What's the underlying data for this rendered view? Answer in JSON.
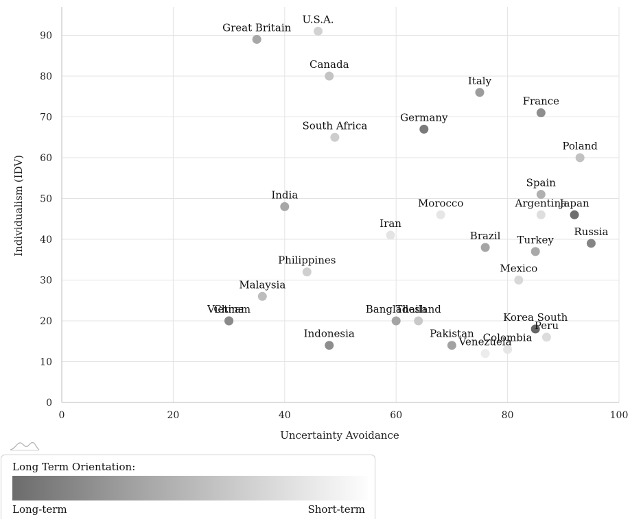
{
  "chart_data": {
    "type": "scatter",
    "xlabel": "Uncertainty Avoidance",
    "ylabel": "Individualism (IDV)",
    "xlim": [
      0,
      100
    ],
    "ylim": [
      0,
      95
    ],
    "x_ticks": [
      "0",
      "20",
      "40",
      "60",
      "80",
      "100"
    ],
    "y_ticks": [
      "0",
      "10",
      "20",
      "30",
      "40",
      "50",
      "60",
      "70",
      "80",
      "90"
    ],
    "grid": true,
    "color_encoding": "Long Term Orientation (darker = long-term, lighter = short-term)",
    "points": [
      {
        "label": "U.S.A.",
        "x": 46,
        "y": 91,
        "color": "#d2d2d2"
      },
      {
        "label": "Great Britain",
        "x": 35,
        "y": 89,
        "color": "#a7a7a7"
      },
      {
        "label": "Canada",
        "x": 48,
        "y": 80,
        "color": "#c4c4c4"
      },
      {
        "label": "Italy",
        "x": 75,
        "y": 76,
        "color": "#9c9c9c"
      },
      {
        "label": "France",
        "x": 86,
        "y": 71,
        "color": "#8e8e8e"
      },
      {
        "label": "Germany",
        "x": 65,
        "y": 67,
        "color": "#7a7a7a"
      },
      {
        "label": "South Africa",
        "x": 49,
        "y": 65,
        "color": "#cdcdcd"
      },
      {
        "label": "Poland",
        "x": 93,
        "y": 60,
        "color": "#c2c2c2"
      },
      {
        "label": "Spain",
        "x": 86,
        "y": 51,
        "color": "#b0b0b0"
      },
      {
        "label": "India",
        "x": 40,
        "y": 48,
        "color": "#a7a7a7"
      },
      {
        "label": "Morocco",
        "x": 68,
        "y": 46,
        "color": "#e6e6e6"
      },
      {
        "label": "Argentina",
        "x": 86,
        "y": 46,
        "color": "#dedede"
      },
      {
        "label": "Japan",
        "x": 92,
        "y": 46,
        "color": "#6e6e6e"
      },
      {
        "label": "Iran",
        "x": 59,
        "y": 41,
        "color": "#e4e4e4"
      },
      {
        "label": "Russia",
        "x": 95,
        "y": 39,
        "color": "#858585"
      },
      {
        "label": "Brazil",
        "x": 76,
        "y": 38,
        "color": "#a5a5a5"
      },
      {
        "label": "Turkey",
        "x": 85,
        "y": 37,
        "color": "#a9a9a9"
      },
      {
        "label": "Philippines",
        "x": 44,
        "y": 32,
        "color": "#cfcfcf"
      },
      {
        "label": "Mexico",
        "x": 82,
        "y": 30,
        "color": "#d8d8d8"
      },
      {
        "label": "Malaysia",
        "x": 36,
        "y": 26,
        "color": "#bdbdbd"
      },
      {
        "label": "Vietnam",
        "x": 30,
        "y": 20,
        "color": "#8d8d8d"
      },
      {
        "label": "China",
        "x": 30,
        "y": 20,
        "color": "#8a8a8a"
      },
      {
        "label": "Bangladesh",
        "x": 60,
        "y": 20,
        "color": "#a4a4a4"
      },
      {
        "label": "Thailand",
        "x": 64,
        "y": 20,
        "color": "#c9c9c9"
      },
      {
        "label": "Korea South",
        "x": 85,
        "y": 18,
        "color": "#666666"
      },
      {
        "label": "Peru",
        "x": 87,
        "y": 16,
        "color": "#dcdcdc"
      },
      {
        "label": "Indonesia",
        "x": 48,
        "y": 14,
        "color": "#8e8e8e"
      },
      {
        "label": "Pakistan",
        "x": 70,
        "y": 14,
        "color": "#a2a2a2"
      },
      {
        "label": "Colombia",
        "x": 80,
        "y": 13,
        "color": "#e6e6e6"
      },
      {
        "label": "Venezuela",
        "x": 76,
        "y": 12,
        "color": "#ececec"
      }
    ]
  },
  "legend": {
    "title": "Long Term Orientation:",
    "left_label": "Long-term",
    "right_label": "Short-term"
  }
}
